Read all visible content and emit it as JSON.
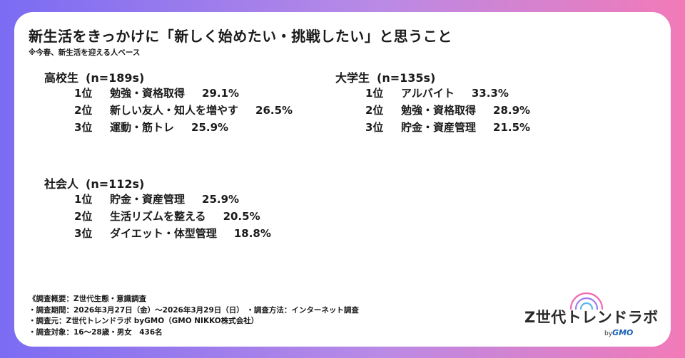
{
  "title": "新生活をきっかけに「新しく始めたい・挑戦したい」と思うこと",
  "subtitle": "※今春、新生活を迎える人ベース",
  "chart_data": {
    "type": "table",
    "groups": [
      {
        "name": "高校生",
        "n": "(n=189s)",
        "rows": [
          {
            "rank": "1位",
            "item": "勉強・資格取得",
            "value": "29.1%"
          },
          {
            "rank": "2位",
            "item": "新しい友人・知人を増やす",
            "value": "26.5%"
          },
          {
            "rank": "3位",
            "item": "運動・筋トレ",
            "value": "25.9%"
          }
        ]
      },
      {
        "name": "大学生",
        "n": "(n=135s)",
        "rows": [
          {
            "rank": "1位",
            "item": "アルバイト",
            "value": "33.3%"
          },
          {
            "rank": "2位",
            "item": "勉強・資格取得",
            "value": "28.9%"
          },
          {
            "rank": "3位",
            "item": "貯金・資産管理",
            "value": "21.5%"
          }
        ]
      },
      {
        "name": "社会人",
        "n": "(n=112s)",
        "rows": [
          {
            "rank": "1位",
            "item": "貯金・資産管理",
            "value": "25.9%"
          },
          {
            "rank": "2位",
            "item": "生活リズムを整える",
            "value": "20.5%"
          },
          {
            "rank": "3位",
            "item": "ダイエット・体型管理",
            "value": "18.8%"
          }
        ]
      }
    ]
  },
  "notes": [
    "《調査概要：Z世代生態・意識調査",
    "・調査期間：2026年3月27日（金）～2026年3月29日（日） ・調査方法：インターネット調査",
    "・調査元：Z世代トレンドラボ byGMO（GMO NIKKO株式会社）",
    "・調査対象：16～28歳・男女　436名"
  ],
  "logo": {
    "brand": "Z世代トレンドラボ",
    "by": "by",
    "gmo": "GMO",
    "colors": {
      "pink": "#f06ab0",
      "purple": "#9b7cf0",
      "blue": "#57b6f0"
    }
  },
  "colors": {
    "gradient_left": "#7b6cf3",
    "gradient_right": "#f27ab8",
    "text": "#1a1a1a"
  }
}
